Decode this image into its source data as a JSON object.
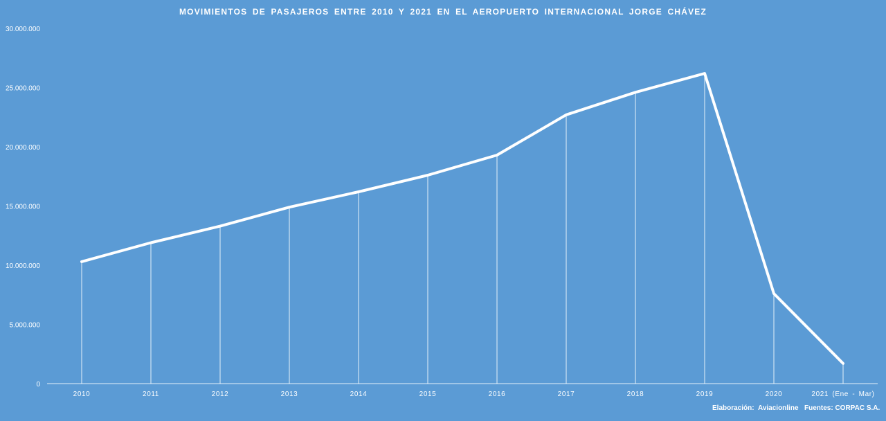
{
  "chart_data": {
    "type": "line",
    "title": "MOVIMIENTOS DE PASAJEROS ENTRE 2010 Y 2021 EN EL AEROPUERTO INTERNACIONAL JORGE CHÁVEZ",
    "xlabel": "",
    "ylabel": "",
    "categories": [
      "2010",
      "2011",
      "2012",
      "2013",
      "2014",
      "2015",
      "2016",
      "2017",
      "2018",
      "2019",
      "2020",
      "2021 (Ene - Mar)"
    ],
    "series": [
      {
        "values": [
          10300000,
          11900000,
          13300000,
          14900000,
          16200000,
          17600000,
          19300000,
          22700000,
          24600000,
          26200000,
          7600000,
          1700000
        ]
      }
    ],
    "ylim": [
      0,
      30000000
    ],
    "yticks": [
      "0",
      "5.000.000",
      "10.000.000",
      "15.000.000",
      "20.000.000",
      "25.000.000",
      "30.000.000"
    ],
    "ytick_values": [
      0,
      5000000,
      10000000,
      15000000,
      20000000,
      25000000,
      30000000
    ],
    "grid": false,
    "drop_lines": true,
    "line_color": "#ffffff",
    "background_color": "#5b9bd5"
  },
  "footer": {
    "elaboracion": "Elaboración: Aviacionline",
    "fuentes": "Fuentes: CORPAC S.A."
  }
}
